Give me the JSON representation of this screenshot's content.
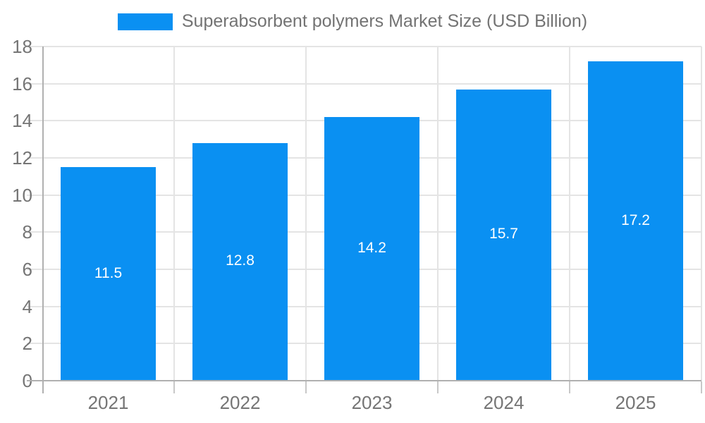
{
  "chart_data": {
    "type": "bar",
    "title": "Superabsorbent polymers Market Size (USD Billion)",
    "categories": [
      "2021",
      "2022",
      "2023",
      "2024",
      "2025"
    ],
    "values": [
      11.5,
      12.8,
      14.2,
      15.7,
      17.2
    ],
    "value_labels": [
      "11.5",
      "12.8",
      "14.2",
      "15.7",
      "17.2"
    ],
    "series_name": "Superabsorbent polymers Market Size (USD Billion)",
    "xlabel": "",
    "ylabel": "",
    "ylim": [
      0,
      18
    ],
    "yticks": [
      0,
      2,
      4,
      6,
      8,
      10,
      12,
      14,
      16,
      18
    ],
    "ytick_labels": [
      "0",
      "2",
      "4",
      "6",
      "8",
      "10",
      "12",
      "14",
      "16",
      "18"
    ],
    "grid": "horizontal and vertical gridlines on",
    "legend_position": "top-center",
    "value_label_position": "inside-center",
    "colors": {
      "bar": "#0a90f2",
      "value_label_text": "#ffffff",
      "axis_text": "#757575",
      "legend_text": "#737373",
      "grid_line": "#e4e4e4",
      "axis_line": "#b0b0b0",
      "tick_line": "#c8c8c8",
      "background": "#ffffff"
    }
  }
}
